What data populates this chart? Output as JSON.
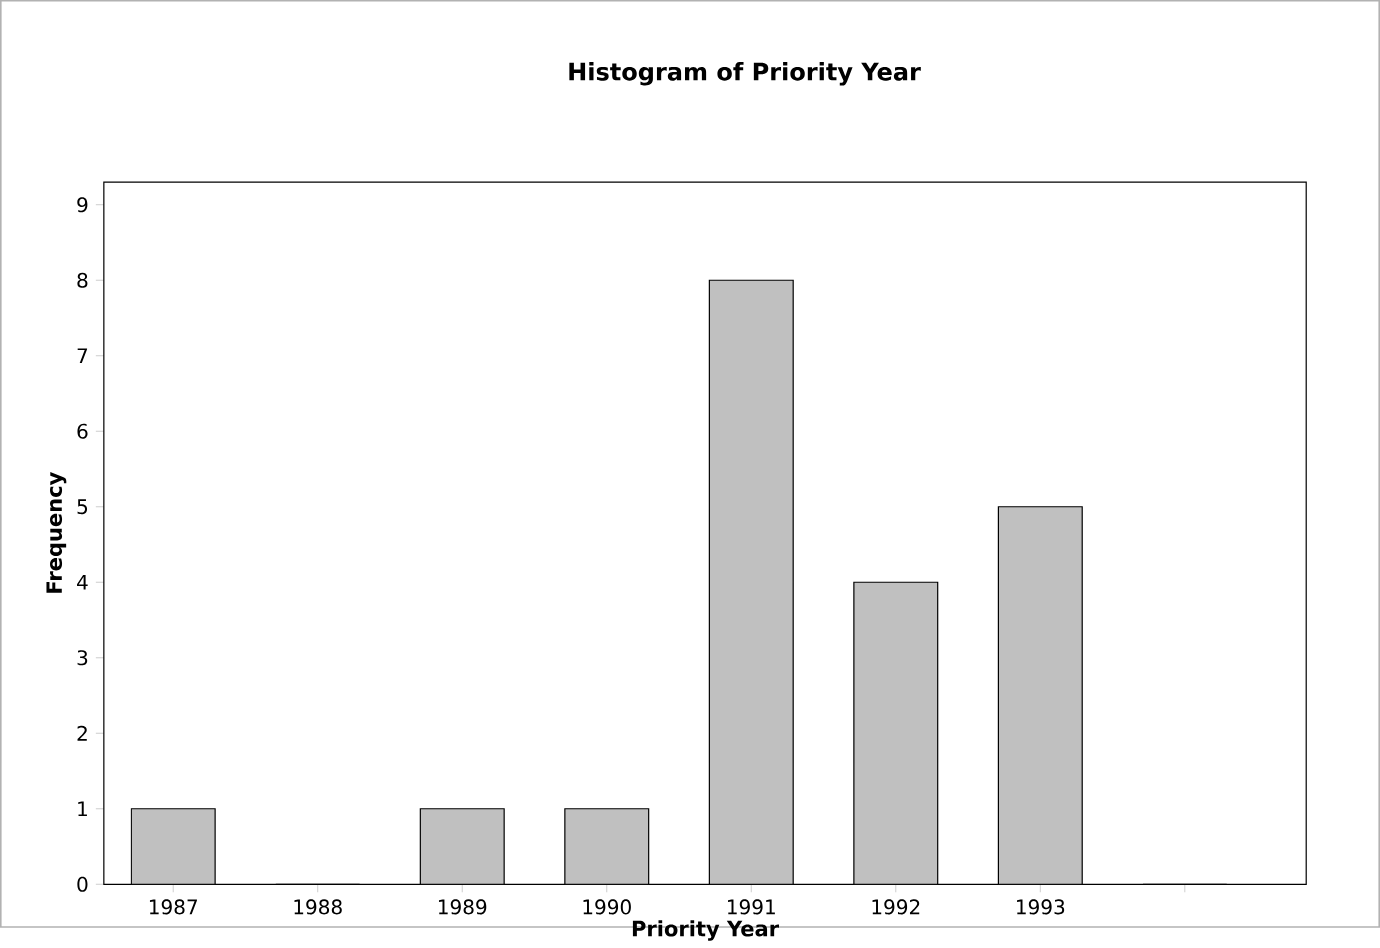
{
  "chart_data": {
    "type": "bar",
    "title": "Histogram of Priority Year",
    "xlabel": "Priority Year",
    "ylabel": "Frequency",
    "categories": [
      "1987",
      "1988",
      "1989",
      "1990",
      "1991",
      "1992",
      "1993",
      null
    ],
    "values": [
      1,
      0,
      1,
      1,
      8,
      4,
      5,
      0
    ],
    "color": "#c0c0c0",
    "ylim": [
      0,
      9.3
    ],
    "yticks": [
      0,
      1,
      2,
      3,
      4,
      5,
      6,
      7,
      8,
      9
    ]
  }
}
